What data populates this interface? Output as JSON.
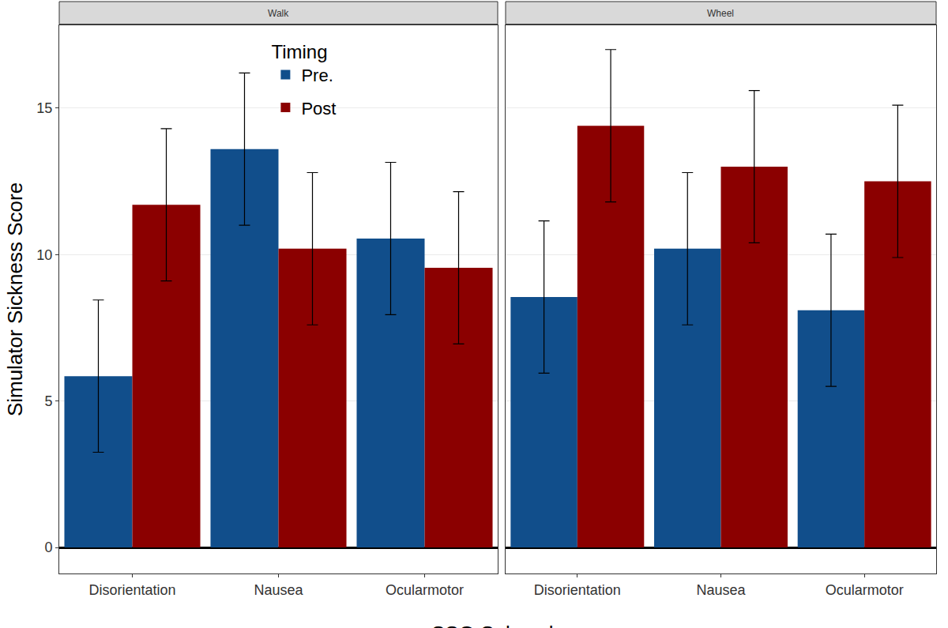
{
  "chart_data": {
    "type": "bar",
    "x_label": "SSQ Subscale",
    "y_label": "Simulator Sickness Score",
    "legend_title": "Timing",
    "legend": "top",
    "grid": true,
    "ylim": [
      -0.89,
      17.83
    ],
    "yticks": [
      0,
      5,
      10,
      15
    ],
    "categories": [
      "Disorientation",
      "Nausea",
      "Ocularmotor"
    ],
    "panels": [
      {
        "title": "Walk",
        "series": [
          {
            "name": "Pre.",
            "color": "#114e8b",
            "values": [
              5.85,
              13.6,
              10.55
            ],
            "errors": [
              2.6,
              2.6,
              2.6
            ]
          },
          {
            "name": "Post",
            "color": "#8b0000",
            "values": [
              11.7,
              10.2,
              9.55
            ],
            "errors": [
              2.6,
              2.6,
              2.6
            ]
          }
        ]
      },
      {
        "title": "Wheel",
        "series": [
          {
            "name": "Pre.",
            "color": "#114e8b",
            "values": [
              8.55,
              10.2,
              8.1
            ],
            "errors": [
              2.6,
              2.6,
              2.6
            ]
          },
          {
            "name": "Post",
            "color": "#8b0000",
            "values": [
              14.4,
              13.0,
              12.5
            ],
            "errors": [
              2.6,
              2.6,
              2.6
            ]
          }
        ]
      }
    ]
  }
}
